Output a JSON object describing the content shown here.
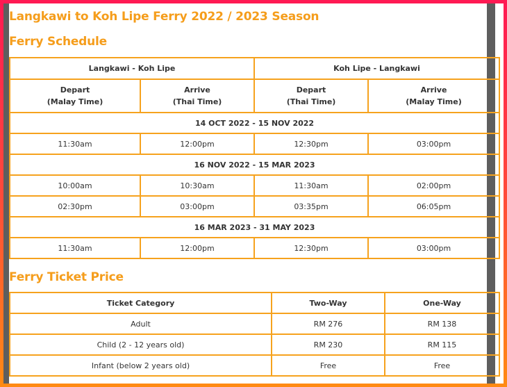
{
  "title": "Langkawi to Koh Lipe Ferry 2022 / 2023 Season",
  "schedule": {
    "heading": "Ferry Schedule",
    "route_a": "Langkawi - Koh Lipe",
    "route_b": "Koh Lipe - Langkawi",
    "columns": [
      {
        "line1": "Depart",
        "line2": "(Malay Time)"
      },
      {
        "line1": "Arrive",
        "line2": "(Thai Time)"
      },
      {
        "line1": "Depart",
        "line2": "(Thai Time)"
      },
      {
        "line1": "Arrive",
        "line2": "(Malay Time)"
      }
    ],
    "periods": [
      {
        "label": "14 OCT 2022 - 15 NOV 2022",
        "rows": [
          [
            "11:30am",
            "12:00pm",
            "12:30pm",
            "03:00pm"
          ]
        ]
      },
      {
        "label": "16 NOV 2022 - 15 MAR 2023",
        "rows": [
          [
            "10:00am",
            "10:30am",
            "11:30am",
            "02:00pm"
          ],
          [
            "02:30pm",
            "03:00pm",
            "03:35pm",
            "06:05pm"
          ]
        ]
      },
      {
        "label": "16 MAR 2023 - 31 MAY 2023",
        "rows": [
          [
            "11:30am",
            "12:00pm",
            "12:30pm",
            "03:00pm"
          ]
        ]
      }
    ]
  },
  "price": {
    "heading": "Ferry Ticket Price",
    "headers": [
      "Ticket Category",
      "Two-Way",
      "One-Way"
    ],
    "rows": [
      [
        "Adult",
        "RM 276",
        "RM 138"
      ],
      [
        "Child (2 - 12 years old)",
        "RM 230",
        "RM 115"
      ],
      [
        "Infant (below 2 years old)",
        "Free",
        "Free"
      ]
    ]
  }
}
